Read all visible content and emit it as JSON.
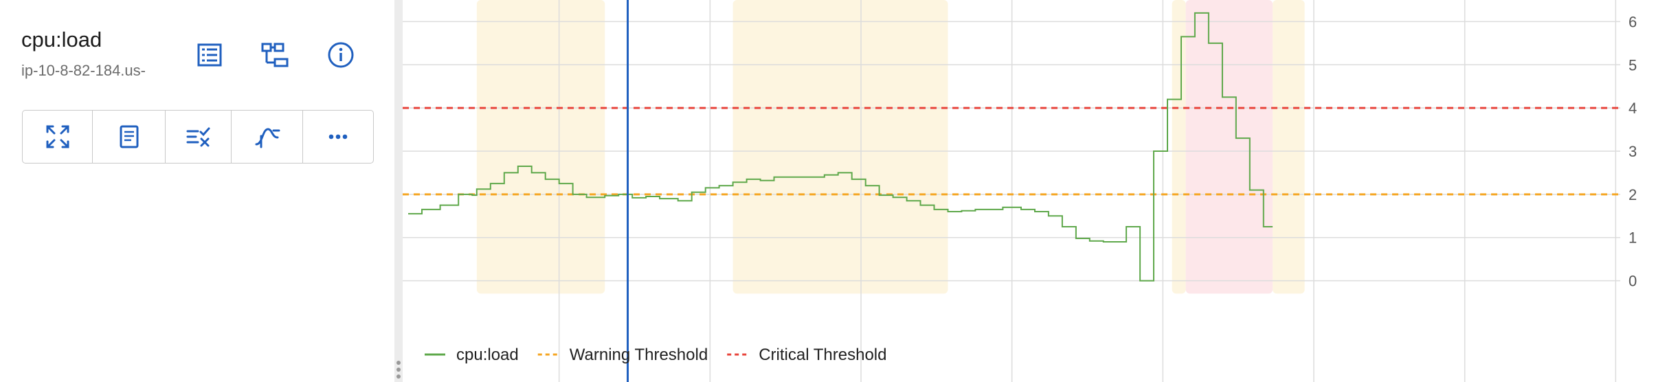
{
  "panel": {
    "title": "cpu:load",
    "subtitle": "ip-10-8-82-184.us-",
    "header_icons": [
      "list-icon",
      "hierarchy-icon",
      "info-icon"
    ],
    "toolbar_icons": [
      "expand-icon",
      "document-icon",
      "filter-check-icon",
      "smooth-curve-icon",
      "more-icon"
    ],
    "accent_color": "#1f5fbf"
  },
  "chart_data": {
    "type": "line",
    "x_range": [
      0,
      265
    ],
    "ylim": [
      -0.5,
      6.5
    ],
    "y_ticks": [
      "0",
      "1",
      "2",
      "3",
      "4",
      "5",
      "6"
    ],
    "grid": true,
    "legend_position": "bottom-left",
    "series": [
      {
        "name": "cpu:load",
        "color": "#5ea84a",
        "step": true,
        "points": [
          [
            0,
            1.55
          ],
          [
            3,
            1.55
          ],
          [
            3,
            1.65
          ],
          [
            7,
            1.65
          ],
          [
            7,
            1.75
          ],
          [
            11,
            1.75
          ],
          [
            11,
            2.0
          ],
          [
            14,
            2.0
          ],
          [
            14,
            1.98
          ],
          [
            15,
            1.98
          ],
          [
            15,
            2.12
          ],
          [
            18,
            2.12
          ],
          [
            18,
            2.25
          ],
          [
            21,
            2.25
          ],
          [
            21,
            2.5
          ],
          [
            24,
            2.5
          ],
          [
            24,
            2.65
          ],
          [
            27,
            2.65
          ],
          [
            27,
            2.5
          ],
          [
            30,
            2.5
          ],
          [
            30,
            2.35
          ],
          [
            33,
            2.35
          ],
          [
            33,
            2.25
          ],
          [
            36,
            2.25
          ],
          [
            36,
            2.0
          ],
          [
            39,
            2.0
          ],
          [
            39,
            1.93
          ],
          [
            43,
            1.93
          ],
          [
            43,
            1.97
          ],
          [
            46,
            1.97
          ],
          [
            46,
            2.0
          ],
          [
            49,
            2.0
          ],
          [
            49,
            1.92
          ],
          [
            52,
            1.92
          ],
          [
            52,
            1.95
          ],
          [
            55,
            1.95
          ],
          [
            55,
            1.9
          ],
          [
            59,
            1.9
          ],
          [
            59,
            1.85
          ],
          [
            62,
            1.85
          ],
          [
            62,
            2.05
          ],
          [
            65,
            2.05
          ],
          [
            65,
            2.15
          ],
          [
            68,
            2.15
          ],
          [
            68,
            2.2
          ],
          [
            71,
            2.2
          ],
          [
            71,
            2.28
          ],
          [
            74,
            2.28
          ],
          [
            74,
            2.35
          ],
          [
            77,
            2.35
          ],
          [
            77,
            2.32
          ],
          [
            80,
            2.32
          ],
          [
            80,
            2.4
          ],
          [
            91,
            2.4
          ],
          [
            91,
            2.45
          ],
          [
            94,
            2.45
          ],
          [
            94,
            2.5
          ],
          [
            97,
            2.5
          ],
          [
            97,
            2.35
          ],
          [
            100,
            2.35
          ],
          [
            100,
            2.2
          ],
          [
            103,
            2.2
          ],
          [
            103,
            1.98
          ],
          [
            106,
            1.98
          ],
          [
            106,
            1.93
          ],
          [
            109,
            1.93
          ],
          [
            109,
            1.85
          ],
          [
            112,
            1.85
          ],
          [
            112,
            1.75
          ],
          [
            115,
            1.75
          ],
          [
            115,
            1.65
          ],
          [
            118,
            1.65
          ],
          [
            118,
            1.6
          ],
          [
            121,
            1.6
          ],
          [
            121,
            1.62
          ],
          [
            124,
            1.62
          ],
          [
            124,
            1.65
          ],
          [
            130,
            1.65
          ],
          [
            130,
            1.7
          ],
          [
            134,
            1.7
          ],
          [
            134,
            1.65
          ],
          [
            137,
            1.65
          ],
          [
            137,
            1.6
          ],
          [
            140,
            1.6
          ],
          [
            140,
            1.5
          ],
          [
            143,
            1.5
          ],
          [
            143,
            1.25
          ],
          [
            146,
            1.25
          ],
          [
            146,
            0.98
          ],
          [
            149,
            0.98
          ],
          [
            149,
            0.92
          ],
          [
            152,
            0.92
          ],
          [
            152,
            0.9
          ],
          [
            157,
            0.9
          ],
          [
            157,
            1.25
          ],
          [
            160,
            1.25
          ],
          [
            160,
            0.0
          ],
          [
            163,
            0.0
          ],
          [
            163,
            3.0
          ],
          [
            166,
            3.0
          ],
          [
            166,
            4.2
          ],
          [
            169,
            4.2
          ],
          [
            169,
            5.65
          ],
          [
            172,
            5.65
          ],
          [
            172,
            6.2
          ],
          [
            175,
            6.2
          ],
          [
            175,
            5.5
          ],
          [
            178,
            5.5
          ],
          [
            178,
            4.25
          ],
          [
            181,
            4.25
          ],
          [
            181,
            3.3
          ],
          [
            184,
            3.3
          ],
          [
            184,
            2.1
          ],
          [
            187,
            2.1
          ],
          [
            187,
            1.25
          ],
          [
            189,
            1.25
          ]
        ]
      },
      {
        "name": "Warning Threshold",
        "color": "#f5a623",
        "dashed": true,
        "value": 2
      },
      {
        "name": "Critical Threshold",
        "color": "#e8453c",
        "dashed": true,
        "value": 4
      }
    ],
    "highlight_bands": [
      {
        "from": 15,
        "to": 43,
        "level": "warning",
        "color": "#fdf5e0"
      },
      {
        "from": 71,
        "to": 118,
        "level": "warning",
        "color": "#fdf5e0"
      },
      {
        "from": 167,
        "to": 170,
        "level": "warning",
        "color": "#fdf5e0"
      },
      {
        "from": 170,
        "to": 189,
        "level": "critical",
        "color": "#fde7ea"
      },
      {
        "from": 189,
        "to": 196,
        "level": "warning",
        "color": "#fdf5e0"
      }
    ],
    "cursor_x": 48
  }
}
